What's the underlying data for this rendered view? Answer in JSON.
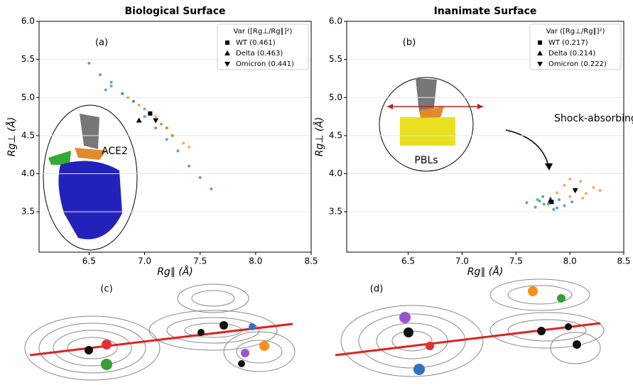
{
  "chart_data": [
    {
      "type": "scatter",
      "title": "Biological Surface",
      "panel_label": "(a)",
      "x_label": "Rg∥ (Å)",
      "y_label": "Rg⊥ (Å)",
      "legend_title": "Var ([Rg⊥/Rg∥]²)",
      "legend": "upper right",
      "xlim": [
        6.05,
        8.5
      ],
      "xticks": [
        6.5,
        {
          "value": 7,
          "label": "7.0"
        },
        7.5,
        {
          "value": 8,
          "label": "8.0"
        },
        8.5
      ],
      "ylim": [
        2.97,
        6.0
      ],
      "yticks": [
        3.5,
        {
          "value": 4,
          "label": "4.0"
        },
        4.5,
        {
          "value": 5,
          "label": "5.0"
        },
        5.5,
        {
          "value": 6,
          "label": "6.0"
        }
      ],
      "series": [
        {
          "name": "WT (0.461)",
          "color": "#000000",
          "marker": "square",
          "x": [
            7.05
          ],
          "y": [
            4.79
          ]
        },
        {
          "name": "Delta (0.463)",
          "color": "#000000",
          "marker": "triangle-up",
          "x": [
            6.95
          ],
          "y": [
            4.7
          ]
        },
        {
          "name": "Omicron (0.441)",
          "color": "#000000",
          "marker": "triangle-down",
          "x": [
            7.1
          ],
          "y": [
            4.7
          ]
        }
      ],
      "clouds": [
        {
          "color": "#1f77b4",
          "x": [
            6.5,
            6.6,
            6.7,
            6.8,
            6.9,
            7.0,
            7.1,
            7.2,
            7.3,
            7.4,
            7.5,
            7.6,
            6.65,
            7.25
          ],
          "y": [
            5.45,
            5.3,
            5.2,
            5.05,
            4.95,
            4.75,
            4.6,
            4.45,
            4.3,
            4.1,
            3.95,
            3.8,
            5.1,
            4.5
          ]
        },
        {
          "color": "#2ca02c",
          "x": [
            6.7,
            6.8,
            6.9,
            7.0,
            7.05,
            7.15,
            7.2
          ],
          "y": [
            5.15,
            5.05,
            4.95,
            4.85,
            4.8,
            4.65,
            4.6
          ]
        },
        {
          "color": "#ff7f0e",
          "x": [
            6.85,
            6.95,
            7.1,
            7.2,
            7.25,
            7.35,
            7.4
          ],
          "y": [
            5.0,
            4.9,
            4.75,
            4.6,
            4.5,
            4.4,
            4.35
          ]
        }
      ],
      "annotations": [
        "ACE2"
      ]
    },
    {
      "type": "scatter",
      "title": "Inanimate Surface",
      "panel_label": "(b)",
      "x_label": "Rg∥ (Å)",
      "y_label": "Rg⊥ (Å)",
      "legend_title": "Var ([Rg⊥/Rg∥]²)",
      "legend": "upper right",
      "xlim": [
        5.93,
        8.5
      ],
      "xticks": [
        6.5,
        {
          "value": 7,
          "label": "7.0"
        },
        7.5,
        {
          "value": 8,
          "label": "8.0"
        },
        8.5
      ],
      "ylim": [
        2.97,
        6.0
      ],
      "yticks": [
        3.5,
        {
          "value": 4,
          "label": "4.0"
        },
        4.5,
        {
          "value": 5,
          "label": "5.0"
        },
        5.5,
        {
          "value": 6,
          "label": "6.0"
        }
      ],
      "series": [
        {
          "name": "WT (0.217)",
          "color": "#000000",
          "marker": "square",
          "x": [
            7.83
          ],
          "y": [
            3.63
          ]
        },
        {
          "name": "Delta (0.214)",
          "color": "#000000",
          "marker": "triangle-up",
          "x": [
            7.82
          ],
          "y": [
            3.65
          ]
        },
        {
          "name": "Omicron (0.222)",
          "color": "#000000",
          "marker": "triangle-down",
          "x": [
            8.05
          ],
          "y": [
            3.78
          ]
        }
      ],
      "clouds": [
        {
          "color": "#1f77b4",
          "x": [
            7.6,
            7.68,
            7.75,
            7.8,
            7.85,
            7.9,
            7.95,
            8.02,
            7.72,
            7.88
          ],
          "y": [
            3.62,
            3.56,
            3.7,
            3.6,
            3.53,
            3.66,
            3.58,
            3.63,
            3.64,
            3.55
          ]
        },
        {
          "color": "#2ca02c",
          "x": [
            7.7,
            7.76,
            7.82
          ],
          "y": [
            3.66,
            3.6,
            3.68
          ]
        },
        {
          "color": "#ff7f0e",
          "x": [
            7.88,
            7.95,
            8.0,
            8.05,
            8.1,
            8.15,
            8.22,
            8.28,
            8.0,
            8.12
          ],
          "y": [
            3.75,
            3.85,
            3.7,
            3.8,
            3.9,
            3.74,
            3.82,
            3.78,
            3.93,
            3.68
          ]
        }
      ],
      "annotations": [
        "Shock-absorbing",
        "PBLs"
      ]
    }
  ],
  "panels": [
    {
      "label": "(c)"
    },
    {
      "label": "(d)"
    }
  ]
}
